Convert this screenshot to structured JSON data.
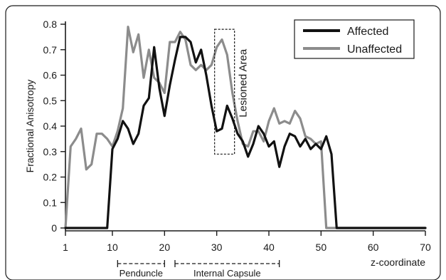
{
  "chart_data": {
    "type": "line",
    "xlabel": "z-coordinate",
    "ylabel": "Fractional Anisotropy",
    "xlim": [
      1,
      70
    ],
    "ylim": [
      0,
      0.8
    ],
    "x_ticks": [
      1,
      10,
      20,
      30,
      40,
      50,
      60,
      70
    ],
    "y_ticks": [
      0,
      0.1,
      0.2,
      0.3,
      0.4,
      0.5,
      0.6,
      0.7,
      0.8
    ],
    "x_tick_labels": [
      "1",
      "10",
      "20",
      "30",
      "40",
      "50",
      "60",
      "70"
    ],
    "y_tick_labels": [
      "0",
      "0.1",
      "0.2",
      "0.3",
      "0.4",
      "0.5",
      "0.6",
      "0.7",
      "0.8"
    ],
    "legend_position": "top-right",
    "series": [
      {
        "name": "Affected",
        "color": "#111111",
        "x": [
          1,
          2,
          3,
          4,
          5,
          6,
          7,
          8,
          9,
          10,
          11,
          12,
          13,
          14,
          15,
          16,
          17,
          18,
          19,
          20,
          21,
          22,
          23,
          24,
          25,
          26,
          27,
          28,
          29,
          30,
          31,
          32,
          33,
          34,
          35,
          36,
          37,
          38,
          39,
          40,
          41,
          42,
          43,
          44,
          45,
          46,
          47,
          48,
          49,
          50,
          51,
          52,
          53,
          54,
          55,
          56,
          57,
          58,
          59,
          60,
          61,
          62,
          63,
          64,
          65,
          66,
          67,
          68,
          69,
          70
        ],
        "y": [
          0,
          0,
          0,
          0,
          0,
          0,
          0,
          0,
          0,
          0.31,
          0.35,
          0.42,
          0.39,
          0.33,
          0.37,
          0.48,
          0.51,
          0.71,
          0.55,
          0.44,
          0.56,
          0.66,
          0.75,
          0.75,
          0.73,
          0.65,
          0.7,
          0.6,
          0.48,
          0.38,
          0.39,
          0.48,
          0.43,
          0.37,
          0.34,
          0.28,
          0.33,
          0.4,
          0.37,
          0.32,
          0.34,
          0.24,
          0.32,
          0.37,
          0.36,
          0.32,
          0.35,
          0.31,
          0.33,
          0.31,
          0.36,
          0.29,
          0,
          0,
          0,
          0,
          0,
          0,
          0,
          0,
          0,
          0,
          0,
          0,
          0,
          0,
          0,
          0,
          0,
          0
        ]
      },
      {
        "name": "Unaffected",
        "color": "#8c8c8c",
        "x": [
          1,
          2,
          3,
          4,
          5,
          6,
          7,
          8,
          9,
          10,
          11,
          12,
          13,
          14,
          15,
          16,
          17,
          18,
          19,
          20,
          21,
          22,
          23,
          24,
          25,
          26,
          27,
          28,
          29,
          30,
          31,
          32,
          33,
          34,
          35,
          36,
          37,
          38,
          39,
          40,
          41,
          42,
          43,
          44,
          45,
          46,
          47,
          48,
          49,
          50,
          51,
          52,
          53,
          54,
          55,
          56,
          57,
          58,
          59,
          60,
          61,
          62,
          63,
          64,
          65,
          66,
          67,
          68,
          69,
          70
        ],
        "y": [
          0,
          0.32,
          0.35,
          0.39,
          0.23,
          0.25,
          0.37,
          0.37,
          0.35,
          0.32,
          0.38,
          0.47,
          0.79,
          0.69,
          0.76,
          0.59,
          0.7,
          0.59,
          0.57,
          0.53,
          0.73,
          0.73,
          0.77,
          0.74,
          0.64,
          0.62,
          0.64,
          0.62,
          0.64,
          0.71,
          0.74,
          0.68,
          0.53,
          0.42,
          0.33,
          0.32,
          0.38,
          0.38,
          0.34,
          0.42,
          0.47,
          0.41,
          0.42,
          0.41,
          0.46,
          0.43,
          0.36,
          0.35,
          0.33,
          0.34,
          0,
          0,
          0,
          0,
          0,
          0,
          0,
          0,
          0,
          0,
          0,
          0,
          0,
          0,
          0,
          0,
          0,
          0,
          0,
          0
        ]
      }
    ],
    "annotations": [
      {
        "text": "Lesioned Area",
        "x_range": [
          30,
          33
        ],
        "y_range": [
          0.29,
          0.78
        ]
      },
      {
        "text": "Penduncle",
        "x_range": [
          11,
          20
        ]
      },
      {
        "text": "Internal Capsule",
        "x_range": [
          22,
          42
        ]
      }
    ]
  }
}
